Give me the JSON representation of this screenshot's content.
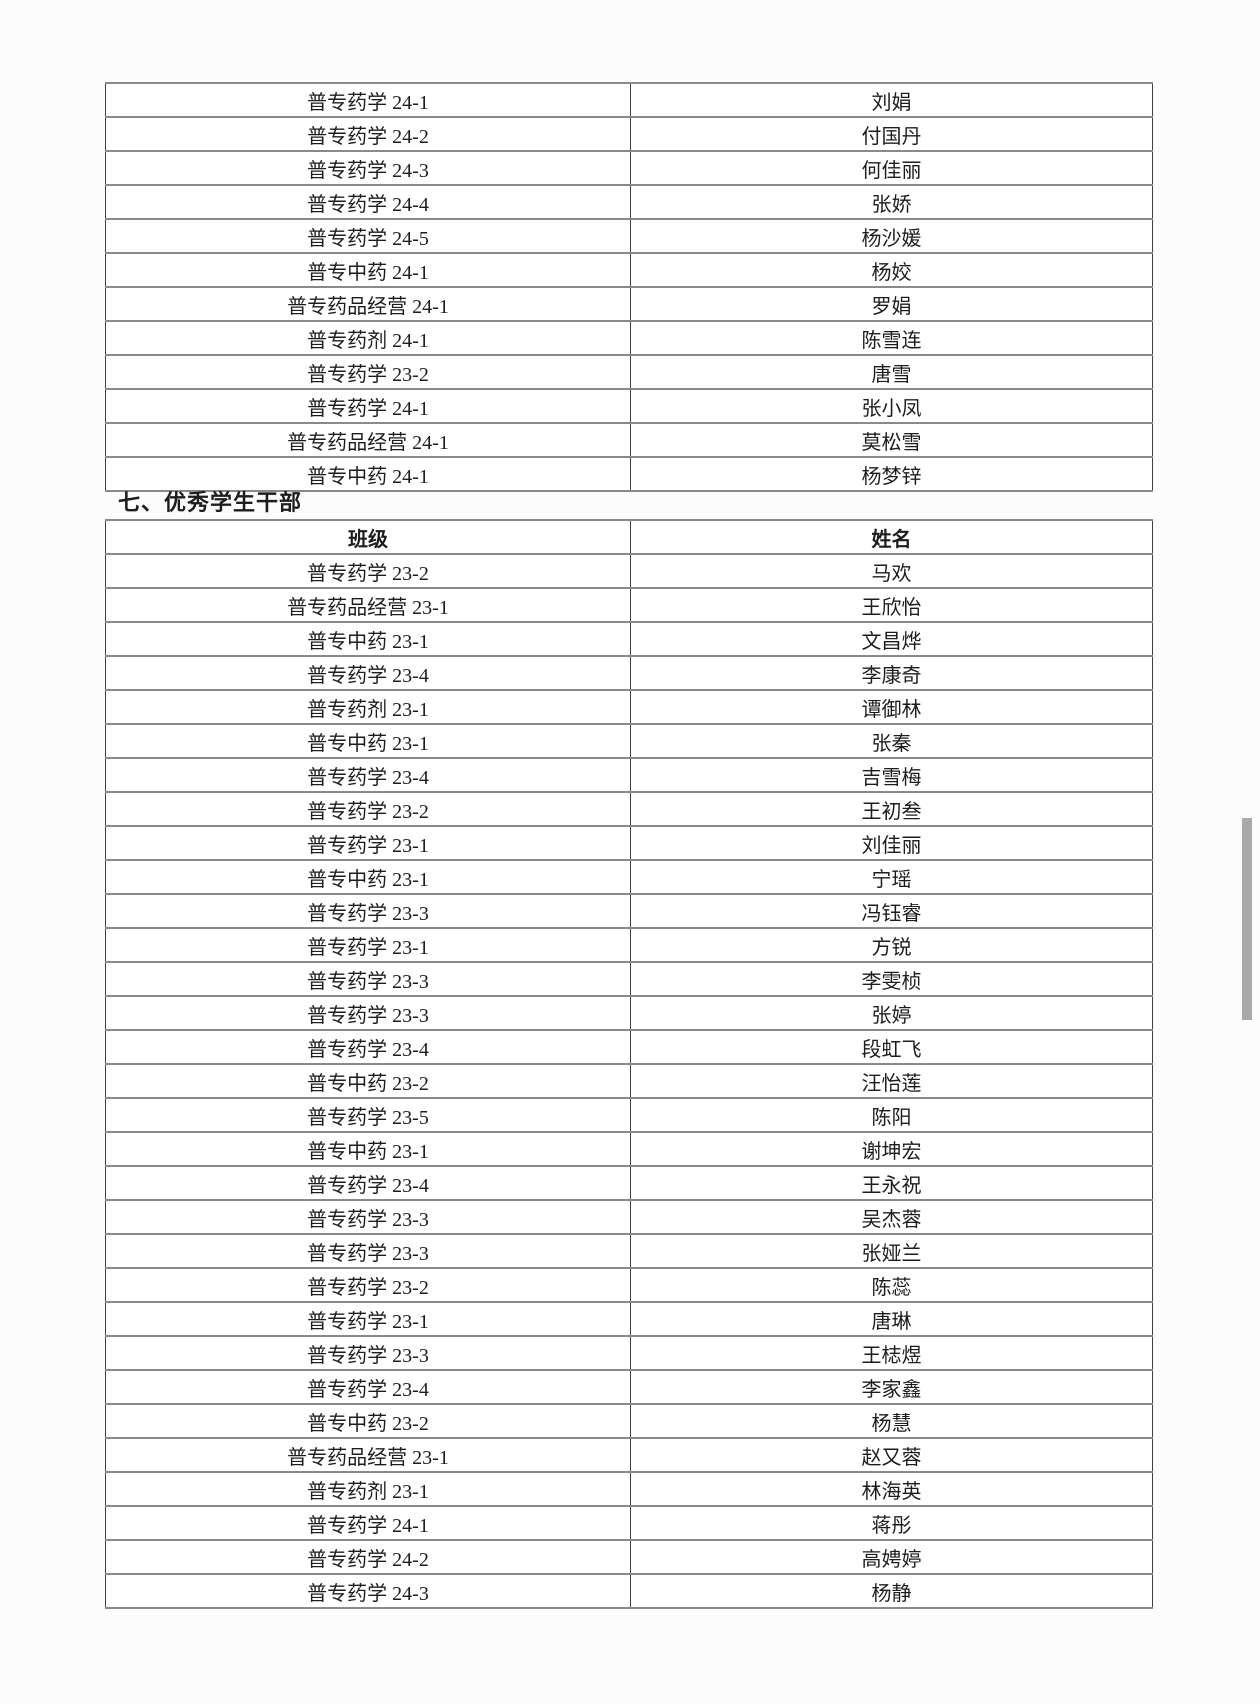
{
  "page": {
    "background_color": "#fcfcfc",
    "text_color": "#1d1d1d",
    "grid_horizontal_color": "#8a8a8a",
    "grid_vertical_color": "#404040"
  },
  "table1": {
    "rows": [
      {
        "class_name": "普专药学 24-1",
        "student_name": "刘娟"
      },
      {
        "class_name": "普专药学 24-2",
        "student_name": "付国丹"
      },
      {
        "class_name": "普专药学 24-3",
        "student_name": "何佳丽"
      },
      {
        "class_name": "普专药学 24-4",
        "student_name": "张娇"
      },
      {
        "class_name": "普专药学 24-5",
        "student_name": "杨沙媛"
      },
      {
        "class_name": "普专中药 24-1",
        "student_name": "杨姣"
      },
      {
        "class_name": "普专药品经营 24-1",
        "student_name": "罗娟"
      },
      {
        "class_name": "普专药剂 24-1",
        "student_name": "陈雪连"
      },
      {
        "class_name": "普专药学 23-2",
        "student_name": "唐雪"
      },
      {
        "class_name": "普专药学 24-1",
        "student_name": "张小凤"
      },
      {
        "class_name": "普专药品经营 24-1",
        "student_name": "莫松雪"
      },
      {
        "class_name": "普专中药 24-1",
        "student_name": "杨梦锌"
      }
    ]
  },
  "section": {
    "title": "七、优秀学生干部"
  },
  "table2": {
    "headers": {
      "class_label": "班级",
      "name_label": "姓名"
    },
    "rows": [
      {
        "class_name": "普专药学 23-2",
        "student_name": "马欢"
      },
      {
        "class_name": "普专药品经营 23-1",
        "student_name": "王欣怡"
      },
      {
        "class_name": "普专中药 23-1",
        "student_name": "文昌烨"
      },
      {
        "class_name": "普专药学 23-4",
        "student_name": "李康奇"
      },
      {
        "class_name": "普专药剂 23-1",
        "student_name": "谭御林"
      },
      {
        "class_name": "普专中药 23-1",
        "student_name": "张秦"
      },
      {
        "class_name": "普专药学 23-4",
        "student_name": "吉雪梅"
      },
      {
        "class_name": "普专药学 23-2",
        "student_name": "王初叁"
      },
      {
        "class_name": "普专药学 23-1",
        "student_name": "刘佳丽"
      },
      {
        "class_name": "普专中药 23-1",
        "student_name": "宁瑶"
      },
      {
        "class_name": "普专药学 23-3",
        "student_name": "冯钰睿"
      },
      {
        "class_name": "普专药学 23-1",
        "student_name": "方锐"
      },
      {
        "class_name": "普专药学 23-3",
        "student_name": "李雯桢"
      },
      {
        "class_name": "普专药学 23-3",
        "student_name": "张婷"
      },
      {
        "class_name": "普专药学 23-4",
        "student_name": "段虹飞"
      },
      {
        "class_name": "普专中药 23-2",
        "student_name": "汪怡莲"
      },
      {
        "class_name": "普专药学 23-5",
        "student_name": "陈阳"
      },
      {
        "class_name": "普专中药 23-1",
        "student_name": "谢坤宏"
      },
      {
        "class_name": "普专药学 23-4",
        "student_name": "王永祝"
      },
      {
        "class_name": "普专药学 23-3",
        "student_name": "吴杰蓉"
      },
      {
        "class_name": "普专药学 23-3",
        "student_name": "张娅兰"
      },
      {
        "class_name": "普专药学 23-2",
        "student_name": "陈蕊"
      },
      {
        "class_name": "普专药学 23-1",
        "student_name": "唐琳"
      },
      {
        "class_name": "普专药学 23-3",
        "student_name": "王梽煜"
      },
      {
        "class_name": "普专药学 23-4",
        "student_name": "李家鑫"
      },
      {
        "class_name": "普专中药 23-2",
        "student_name": "杨慧"
      },
      {
        "class_name": "普专药品经营 23-1",
        "student_name": "赵又蓉"
      },
      {
        "class_name": "普专药剂 23-1",
        "student_name": "林海英"
      },
      {
        "class_name": "普专药学 24-1",
        "student_name": "蒋彤"
      },
      {
        "class_name": "普专药学 24-2",
        "student_name": "高娉婷"
      },
      {
        "class_name": "普专药学 24-3",
        "student_name": "杨静"
      }
    ]
  },
  "scrollbar": {
    "thumb_color": "#a9a9a9"
  }
}
